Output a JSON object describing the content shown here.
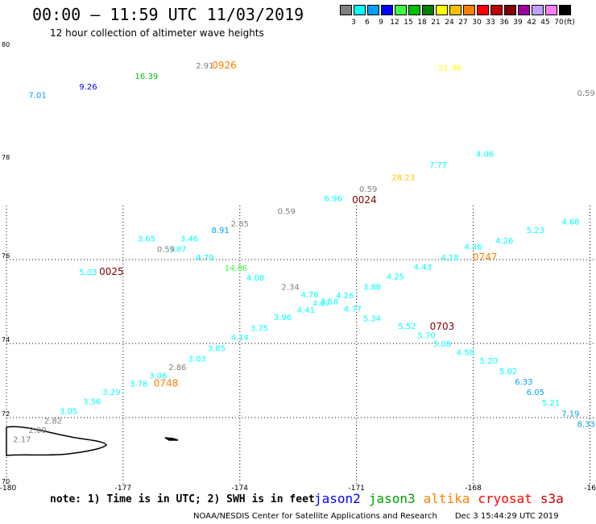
{
  "title": "00:00 — 11:59 UTC 11/03/2019",
  "subtitle": "12 hour collection of altimeter wave heights",
  "legend": {
    "unit": "(ft)",
    "items": [
      {
        "label": "3",
        "color": "#808080"
      },
      {
        "label": "6",
        "color": "#00ffff"
      },
      {
        "label": "9",
        "color": "#00a0ff"
      },
      {
        "label": "12",
        "color": "#0000ff"
      },
      {
        "label": "15",
        "color": "#40ff40"
      },
      {
        "label": "18",
        "color": "#00c000"
      },
      {
        "label": "21",
        "color": "#008000"
      },
      {
        "label": "24",
        "color": "#ffff00"
      },
      {
        "label": "27",
        "color": "#ffc000"
      },
      {
        "label": "30",
        "color": "#ff8000"
      },
      {
        "label": "33",
        "color": "#ff0000"
      },
      {
        "label": "36",
        "color": "#c00000"
      },
      {
        "label": "39",
        "color": "#800000"
      },
      {
        "label": "42",
        "color": "#a000a0"
      },
      {
        "label": "45",
        "color": "#c0a0ff"
      },
      {
        "label": "70",
        "color": "#ff80ff"
      },
      {
        "label": "",
        "color": "#000000"
      }
    ]
  },
  "axes": {
    "lat_labels": [
      "80",
      "78",
      "76",
      "74",
      "72",
      "70"
    ],
    "lon_labels": [
      "-180",
      "-177",
      "-174",
      "-171",
      "-168",
      "-16"
    ]
  },
  "points": [
    {
      "v": "7.01",
      "c": "#00a0ff",
      "lon": -179.2,
      "lat": 79.15
    },
    {
      "v": "9.26",
      "c": "#0000ff",
      "lon": -177.9,
      "lat": 79.35
    },
    {
      "v": "16.39",
      "c": "#00c000",
      "lon": -176.4,
      "lat": 79.6
    },
    {
      "v": "2.91",
      "c": "#808080",
      "lon": -174.9,
      "lat": 79.85
    },
    {
      "v": "21.36",
      "c": "#ffff00",
      "lon": -168.6,
      "lat": 79.8
    },
    {
      "v": "0.59",
      "c": "#808080",
      "lon": -165.1,
      "lat": 79.2
    },
    {
      "v": "4.06",
      "c": "#00ffff",
      "lon": -167.7,
      "lat": 77.75
    },
    {
      "v": "7.77",
      "c": "#00ffff",
      "lon": -168.9,
      "lat": 77.5
    },
    {
      "v": "28.23",
      "c": "#ffc000",
      "lon": -169.8,
      "lat": 77.2
    },
    {
      "v": "0.59",
      "c": "#808080",
      "lon": -170.7,
      "lat": 76.92
    },
    {
      "v": "6.96",
      "c": "#00ffff",
      "lon": -171.6,
      "lat": 76.7
    },
    {
      "v": "0.59",
      "c": "#808080",
      "lon": -172.8,
      "lat": 76.4
    },
    {
      "v": "2.85",
      "c": "#808080",
      "lon": -174.0,
      "lat": 76.1
    },
    {
      "v": "8.91",
      "c": "#00a0ff",
      "lon": -174.5,
      "lat": 75.95
    },
    {
      "v": "3.46",
      "c": "#00ffff",
      "lon": -175.3,
      "lat": 75.75
    },
    {
      "v": "3.87",
      "c": "#00ffff",
      "lon": -175.6,
      "lat": 75.5
    },
    {
      "v": "4.79",
      "c": "#00ffff",
      "lon": -174.9,
      "lat": 75.3
    },
    {
      "v": "14.86",
      "c": "#40ff40",
      "lon": -174.1,
      "lat": 75.05
    },
    {
      "v": "4.08",
      "c": "#00ffff",
      "lon": -173.6,
      "lat": 74.82
    },
    {
      "v": "3.65",
      "c": "#00ffff",
      "lon": -176.4,
      "lat": 75.75
    },
    {
      "v": "0.59",
      "c": "#808080",
      "lon": -175.9,
      "lat": 75.5
    },
    {
      "v": "5.03",
      "c": "#00ffff",
      "lon": -177.9,
      "lat": 74.95
    },
    {
      "v": "4.68",
      "c": "#00ffff",
      "lon": -165.5,
      "lat": 76.15
    },
    {
      "v": "5.23",
      "c": "#00ffff",
      "lon": -166.4,
      "lat": 75.95
    },
    {
      "v": "4.26",
      "c": "#00ffff",
      "lon": -167.2,
      "lat": 75.7
    },
    {
      "v": "4.36",
      "c": "#00ffff",
      "lon": -168.0,
      "lat": 75.55
    },
    {
      "v": "4.18",
      "c": "#00ffff",
      "lon": -168.6,
      "lat": 75.3
    },
    {
      "v": "4.43",
      "c": "#00ffff",
      "lon": -169.3,
      "lat": 75.08
    },
    {
      "v": "4.25",
      "c": "#00ffff",
      "lon": -170.0,
      "lat": 74.85
    },
    {
      "v": "3.88",
      "c": "#00ffff",
      "lon": -170.6,
      "lat": 74.6
    },
    {
      "v": "4.26",
      "c": "#00ffff",
      "lon": -171.3,
      "lat": 74.4
    },
    {
      "v": "2.34",
      "c": "#808080",
      "lon": -172.7,
      "lat": 74.6
    },
    {
      "v": "4.76",
      "c": "#00ffff",
      "lon": -172.2,
      "lat": 74.42
    },
    {
      "v": "3.58",
      "c": "#00ffff",
      "lon": -171.7,
      "lat": 74.25
    },
    {
      "v": "4.67",
      "c": "#00ffff",
      "lon": -171.9,
      "lat": 74.22
    },
    {
      "v": "4.77",
      "c": "#00ffff",
      "lon": -171.1,
      "lat": 74.08
    },
    {
      "v": "4.41",
      "c": "#00ffff",
      "lon": -172.3,
      "lat": 74.05
    },
    {
      "v": "5.34",
      "c": "#00ffff",
      "lon": -170.6,
      "lat": 73.85
    },
    {
      "v": "5.52",
      "c": "#00ffff",
      "lon": -169.7,
      "lat": 73.67
    },
    {
      "v": "5.70",
      "c": "#00ffff",
      "lon": -169.2,
      "lat": 73.45
    },
    {
      "v": "5.08",
      "c": "#00ffff",
      "lon": -168.8,
      "lat": 73.25
    },
    {
      "v": "4.58",
      "c": "#00ffff",
      "lon": -168.2,
      "lat": 73.05
    },
    {
      "v": "5.20",
      "c": "#00ffff",
      "lon": -167.6,
      "lat": 72.85
    },
    {
      "v": "5.02",
      "c": "#00ffff",
      "lon": -167.1,
      "lat": 72.6
    },
    {
      "v": "6.33",
      "c": "#00a0ff",
      "lon": -166.7,
      "lat": 72.35
    },
    {
      "v": "6.05",
      "c": "#00a0ff",
      "lon": -166.4,
      "lat": 72.1
    },
    {
      "v": "5.21",
      "c": "#00ffff",
      "lon": -166.0,
      "lat": 71.85
    },
    {
      "v": "7.19",
      "c": "#00a0ff",
      "lon": -165.5,
      "lat": 71.6
    },
    {
      "v": "8.33",
      "c": "#00a0ff",
      "lon": -165.1,
      "lat": 71.35
    },
    {
      "v": "3.96",
      "c": "#00ffff",
      "lon": -172.9,
      "lat": 73.88
    },
    {
      "v": "3.75",
      "c": "#00ffff",
      "lon": -173.5,
      "lat": 73.62
    },
    {
      "v": "4.14",
      "c": "#00ffff",
      "lon": -174.0,
      "lat": 73.4
    },
    {
      "v": "3.85",
      "c": "#00ffff",
      "lon": -174.6,
      "lat": 73.15
    },
    {
      "v": "3.03",
      "c": "#00ffff",
      "lon": -175.1,
      "lat": 72.9
    },
    {
      "v": "2.86",
      "c": "#808080",
      "lon": -175.6,
      "lat": 72.7
    },
    {
      "v": "3.06",
      "c": "#00ffff",
      "lon": -176.1,
      "lat": 72.5
    },
    {
      "v": "3.78",
      "c": "#00ffff",
      "lon": -176.6,
      "lat": 72.3
    },
    {
      "v": "3.29",
      "c": "#00ffff",
      "lon": -177.3,
      "lat": 72.1
    },
    {
      "v": "3.56",
      "c": "#00ffff",
      "lon": -177.8,
      "lat": 71.88
    },
    {
      "v": "3.05",
      "c": "#00ffff",
      "lon": -178.4,
      "lat": 71.65
    },
    {
      "v": "2.82",
      "c": "#808080",
      "lon": -178.8,
      "lat": 71.42
    },
    {
      "v": "2.09",
      "c": "#808080",
      "lon": -179.2,
      "lat": 71.2
    },
    {
      "v": "2.17",
      "c": "#808080",
      "lon": -179.6,
      "lat": 70.98
    }
  ],
  "time_labels": [
    {
      "t": "0926",
      "c": "#ff8000",
      "lon": -174.4,
      "lat": 79.85
    },
    {
      "t": "0024",
      "c": "#800000",
      "lon": -170.8,
      "lat": 76.65
    },
    {
      "t": "0025",
      "c": "#800000",
      "lon": -177.3,
      "lat": 74.95
    },
    {
      "t": "0747",
      "c": "#ff8000",
      "lon": -167.7,
      "lat": 75.3
    },
    {
      "t": "0703",
      "c": "#800000",
      "lon": -168.8,
      "lat": 73.65
    },
    {
      "t": "0748",
      "c": "#ff8000",
      "lon": -175.9,
      "lat": 72.3
    }
  ],
  "note": "note:  1) Time is in UTC;  2) SWH is in feet",
  "satellites": [
    {
      "name": "jason2",
      "color": "#0000ff"
    },
    {
      "name": "jason3",
      "color": "#00a000"
    },
    {
      "name": "altika",
      "color": "#ff8000"
    },
    {
      "name": "cryosat",
      "color": "#ff0000"
    },
    {
      "name": "s3a",
      "color": "#c00000"
    }
  ],
  "credit": "NOAA/NESDIS Center for Satellite Applications and Research",
  "timestamp": "Dec  3 15:44:29 UTC 2019"
}
